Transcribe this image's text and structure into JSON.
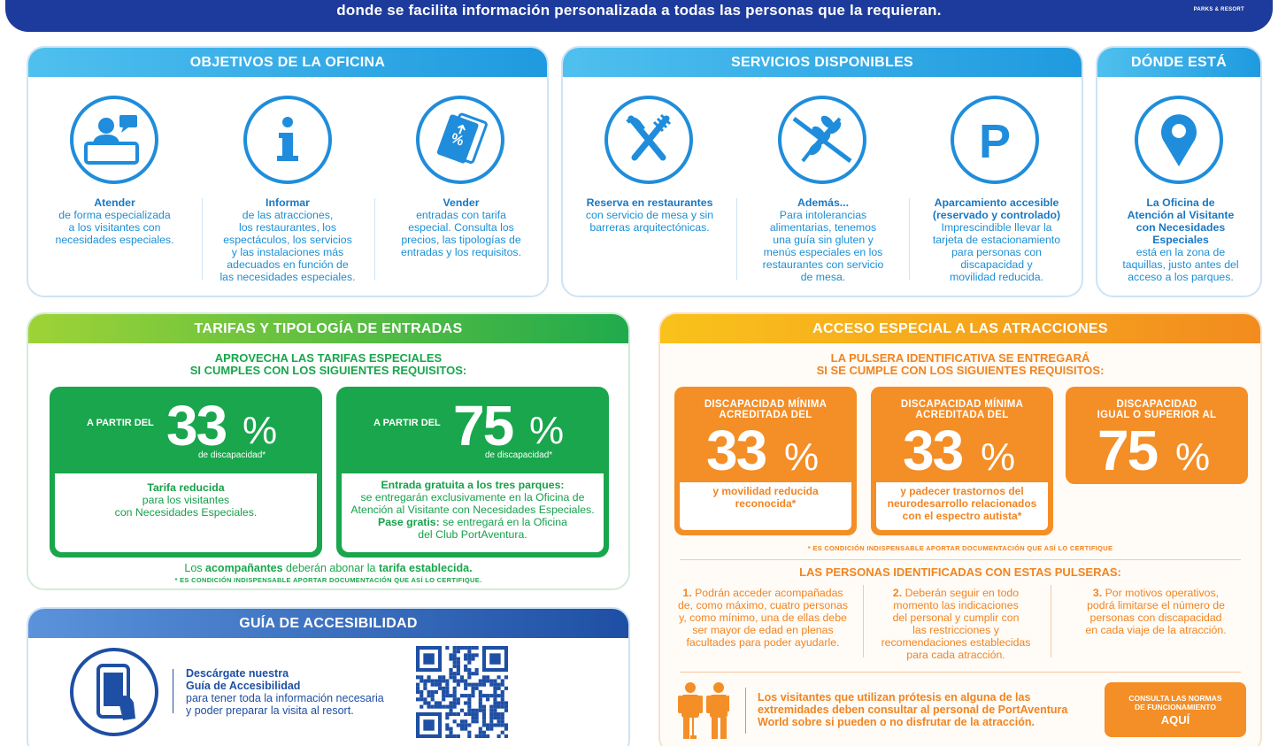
{
  "header": {
    "text": "donde se facilita información personalizada a todas las personas que la requieran.",
    "logo": "PARKS & RESORT"
  },
  "objetivos": {
    "title": "OBJETIVOS DE LA OFICINA",
    "items": [
      {
        "icon": "attendant-icon",
        "title": "Atender",
        "lines": [
          "de forma especializada",
          "a los visitantes con",
          "necesidades especiales."
        ]
      },
      {
        "icon": "info-icon",
        "title": "Informar",
        "lines": [
          "de las atracciones,",
          "los restaurantes, los",
          "espectáculos, los servicios",
          "y las instalaciones más",
          "adecuados en función de",
          "las necesidades especiales."
        ]
      },
      {
        "icon": "ticket-icon",
        "title": "Vender",
        "lines": [
          "entradas con tarifa",
          "especial. Consulta los",
          "precios, las tipologías de",
          "entradas y los requisitos."
        ]
      }
    ]
  },
  "servicios": {
    "title": "SERVICIOS DISPONIBLES",
    "items": [
      {
        "icon": "restaurant-icon",
        "title": "Reserva en restaurantes",
        "lines": [
          "con servicio de mesa y sin",
          "barreras arquitectónicas."
        ]
      },
      {
        "icon": "gluten-free-icon",
        "title": "Además...",
        "lines": [
          "Para intolerancias",
          "alimentarias, tenemos",
          "una guía sin gluten y",
          "menús especiales en los",
          "restaurantes con servicio",
          "de mesa."
        ]
      },
      {
        "icon": "parking-icon",
        "title": "Aparcamiento accesible",
        "title2": "(reservado y controlado)",
        "lines": [
          "Imprescindible llevar la",
          "tarjeta de estacionamiento",
          "para personas con",
          "discapacidad y",
          "movilidad reducida."
        ]
      }
    ]
  },
  "donde": {
    "title": "DÓNDE ESTÁ",
    "icon": "location-pin-icon",
    "title_lines": [
      "La Oficina de",
      "Atención al Visitante",
      "con Necesidades",
      "Especiales"
    ],
    "lines": [
      "está en la zona de",
      "taquillas, justo antes del",
      "acceso a los parques."
    ]
  },
  "tarifas": {
    "title": "TARIFAS Y TIPOLOGÍA DE ENTRADAS",
    "head1": "APROVECHA LAS TARIFAS ESPECIALES",
    "head2": "SI CUMPLES CON LOS SIGUIENTES REQUISITOS:",
    "boxes": [
      {
        "pre": "A PARTIR DEL",
        "num": "33",
        "pct": "%",
        "sub": "de discapacidad*",
        "lines": [
          {
            "b": "Tarifa reducida",
            "t": ""
          },
          {
            "b": "",
            "t": "para los visitantes"
          },
          {
            "b": "",
            "t": "con Necesidades Especiales."
          }
        ]
      },
      {
        "pre": "A PARTIR DEL",
        "num": "75",
        "pct": "%",
        "sub": "de discapacidad*",
        "lines": [
          {
            "b": "Entrada gratuita a los tres parques:",
            "t": ""
          },
          {
            "b": "",
            "t": "se entregarán exclusivamente en la Oficina de"
          },
          {
            "b": "",
            "t": "Atención al Visitante con Necesidades Especiales."
          },
          {
            "b": "Pase gratis:",
            "t": " se entregará en la Oficina"
          },
          {
            "b": "",
            "t": "del Club PortAventura."
          }
        ]
      }
    ],
    "foot_a": "Los ",
    "foot_b": "acompañantes",
    "foot_c": " deberán abonar la ",
    "foot_d": "tarifa establecida.",
    "note": "* ES CONDICIÓN INDISPENSABLE APORTAR DOCUMENTACIÓN QUE ASÍ LO CERTIFIQUE."
  },
  "guia": {
    "title": "GUÍA DE ACCESIBILIDAD",
    "icon": "phone-hand-icon",
    "b1": "Descárgate nuestra",
    "b2": "Guía de Accesibilidad",
    "l1": "para tener toda la información necesaria",
    "l2": "y poder preparar la visita al resort.",
    "qr": "qr-code-icon"
  },
  "acceso": {
    "title": "ACCESO ESPECIAL A LAS ATRACCIONES",
    "head1": "LA PULSERA IDENTIFICATIVA SE ENTREGARÁ",
    "head2": "SI SE CUMPLE CON LOS SIGUIENTES REQUISITOS:",
    "boxes": [
      {
        "h1": "DISCAPACIDAD MÍNIMA",
        "h2": "ACREDITADA DEL",
        "num": "33",
        "pct": "%",
        "lines": [
          "y movilidad reducida",
          "reconocida*"
        ]
      },
      {
        "h1": "DISCAPACIDAD MÍNIMA",
        "h2": "ACREDITADA DEL",
        "num": "33",
        "pct": "%",
        "lines": [
          "y padecer trastornos del",
          "neurodesarrollo relacionados",
          "con el espectro autista*"
        ]
      },
      {
        "h1": "DISCAPACIDAD",
        "h2": "IGUAL O SUPERIOR AL",
        "num": "75",
        "pct": "%",
        "lines": []
      }
    ],
    "note": "* ES CONDICIÓN INDISPENSABLE APORTAR DOCUMENTACIÓN QUE ASÍ LO CERTIFIQUE",
    "head3": "LAS PERSONAS IDENTIFICADAS CON ESTAS PULSERAS:",
    "cols": [
      {
        "n": "1.",
        "lines": [
          " Podrán acceder acompañadas",
          "de, como máximo, cuatro personas",
          "y, como mínimo, una de ellas debe",
          "ser mayor de edad en plenas",
          "facultades para poder ayudarle."
        ]
      },
      {
        "n": "2.",
        "lines": [
          " Deberán seguir en todo",
          "momento las indicaciones",
          "del personal y cumplir con",
          "las restricciones y",
          "recomendaciones establecidas",
          "para cada atracción."
        ]
      },
      {
        "n": "3.",
        "lines": [
          " Por motivos operativos,",
          "podrá limitarse el número de",
          "personas con discapacidad",
          "en cada viaje de la atracción."
        ]
      }
    ],
    "prost_icon": "prosthesis-people-icon",
    "prost": [
      "Los visitantes que utilizan prótesis en alguna de las",
      "extremidades deben consultar al personal de PortAventura",
      "World sobre si pueden o no disfrutar de la atracción."
    ],
    "btn1": "CONSULTA LAS NORMAS",
    "btn2": "DE FUNCIONAMIENTO",
    "btn3": "AQUÍ"
  }
}
